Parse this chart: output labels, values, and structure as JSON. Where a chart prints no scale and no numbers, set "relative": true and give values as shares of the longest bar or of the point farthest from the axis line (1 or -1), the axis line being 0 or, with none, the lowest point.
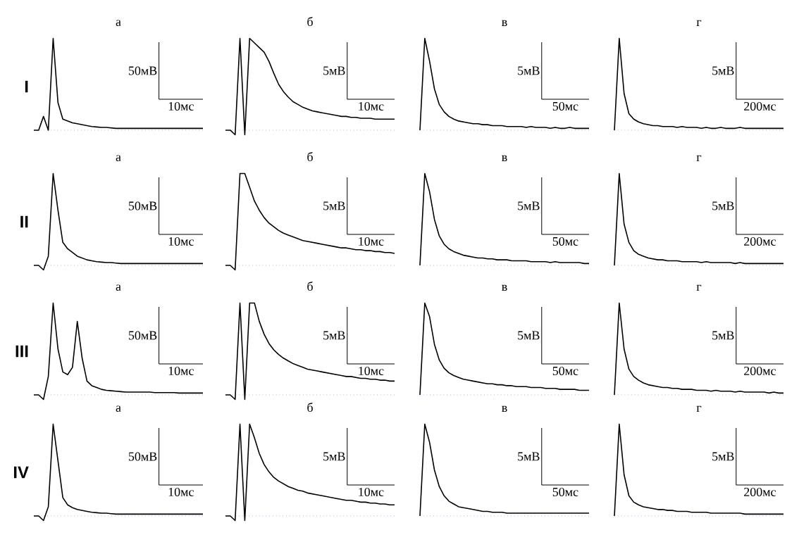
{
  "chart_data": [
    {
      "type": "line",
      "title": "а",
      "ylabel": "I",
      "relative": true,
      "color": "#000000",
      "annotations": [
        "50мВ",
        "10мс"
      ],
      "ref_lines": [
        {
          "axis": "y",
          "value": 0,
          "color": "#8080ff",
          "line_style": "dotted"
        }
      ],
      "categories": [
        null,
        null,
        null,
        null,
        null,
        null,
        null,
        null,
        null,
        null,
        null,
        null,
        null,
        null,
        null,
        null,
        null,
        null,
        null,
        null,
        null,
        null,
        null,
        null,
        null,
        null,
        null,
        null,
        null,
        null,
        null,
        null,
        null,
        null,
        null,
        null
      ],
      "values": [
        0,
        0,
        0.15,
        0,
        1,
        0.3,
        0.12,
        0.1,
        0.08,
        0.07,
        0.06,
        0.05,
        0.04,
        0.035,
        0.03,
        0.03,
        0.025,
        0.02,
        0.02,
        0.02,
        0.02,
        0.02,
        0.02,
        0.02,
        0.02,
        0.02,
        0.02,
        0.02,
        0.02,
        0.02,
        0.02,
        0.02,
        0.02,
        0.02,
        0.02,
        0.02
      ]
    },
    {
      "type": "line",
      "title": "б",
      "relative": true,
      "color": "#000000",
      "annotations": [
        "5мВ",
        "10мс"
      ],
      "ref_lines": [
        {
          "axis": "y",
          "value": 0,
          "color": "#8080ff",
          "line_style": "dotted"
        }
      ],
      "categories": [
        null,
        null,
        null,
        null,
        null,
        null,
        null,
        null,
        null,
        null,
        null,
        null,
        null,
        null,
        null,
        null,
        null,
        null,
        null,
        null,
        null,
        null,
        null,
        null,
        null,
        null,
        null,
        null,
        null,
        null,
        null,
        null,
        null,
        null,
        null,
        null
      ],
      "values": [
        0,
        0,
        -0.05,
        1,
        -0.05,
        1,
        0.95,
        0.9,
        0.85,
        0.75,
        0.62,
        0.5,
        0.42,
        0.36,
        0.31,
        0.28,
        0.25,
        0.23,
        0.21,
        0.2,
        0.19,
        0.18,
        0.17,
        0.16,
        0.15,
        0.15,
        0.14,
        0.14,
        0.13,
        0.13,
        0.13,
        0.12,
        0.12,
        0.12,
        0.12,
        0.12
      ]
    },
    {
      "type": "line",
      "title": "в",
      "relative": true,
      "color": "#000000",
      "annotations": [
        "5мВ",
        "50мс"
      ],
      "ref_lines": [
        {
          "axis": "y",
          "value": 0,
          "color": "#8080ff",
          "line_style": "dotted"
        }
      ],
      "categories": [
        null,
        null,
        null,
        null,
        null,
        null,
        null,
        null,
        null,
        null,
        null,
        null,
        null,
        null,
        null,
        null,
        null,
        null,
        null,
        null,
        null,
        null,
        null,
        null,
        null,
        null,
        null,
        null,
        null,
        null,
        null,
        null,
        null,
        null,
        null,
        null
      ],
      "values": [
        0,
        1,
        0.75,
        0.45,
        0.28,
        0.2,
        0.15,
        0.12,
        0.1,
        0.09,
        0.08,
        0.07,
        0.07,
        0.06,
        0.06,
        0.05,
        0.05,
        0.05,
        0.04,
        0.04,
        0.04,
        0.04,
        0.03,
        0.04,
        0.03,
        0.03,
        0.03,
        0.02,
        0.03,
        0.02,
        0.02,
        0.03,
        0.02,
        0.02,
        0.02,
        0.02
      ]
    },
    {
      "type": "line",
      "title": "г",
      "relative": true,
      "color": "#000000",
      "annotations": [
        "5мВ",
        "200мс"
      ],
      "ref_lines": [
        {
          "axis": "y",
          "value": 0,
          "color": "#8080ff",
          "line_style": "dotted"
        }
      ],
      "categories": [
        null,
        null,
        null,
        null,
        null,
        null,
        null,
        null,
        null,
        null,
        null,
        null,
        null,
        null,
        null,
        null,
        null,
        null,
        null,
        null,
        null,
        null,
        null,
        null,
        null,
        null,
        null,
        null,
        null,
        null,
        null,
        null,
        null,
        null,
        null,
        null
      ],
      "values": [
        0,
        1,
        0.4,
        0.18,
        0.12,
        0.09,
        0.07,
        0.06,
        0.05,
        0.05,
        0.04,
        0.04,
        0.04,
        0.03,
        0.04,
        0.03,
        0.03,
        0.03,
        0.02,
        0.03,
        0.02,
        0.02,
        0.03,
        0.02,
        0.02,
        0.02,
        0.03,
        0.02,
        0.02,
        0.02,
        0.02,
        0.02,
        0.02,
        0.02,
        0.02,
        0.02
      ]
    },
    {
      "type": "line",
      "title": "а",
      "ylabel": "II",
      "relative": true,
      "color": "#000000",
      "annotations": [
        "50мВ",
        "10мс"
      ],
      "ref_lines": [
        {
          "axis": "y",
          "value": 0,
          "color": "#8080ff",
          "line_style": "dotted"
        }
      ],
      "categories": [
        null,
        null,
        null,
        null,
        null,
        null,
        null,
        null,
        null,
        null,
        null,
        null,
        null,
        null,
        null,
        null,
        null,
        null,
        null,
        null,
        null,
        null,
        null,
        null,
        null,
        null,
        null,
        null,
        null,
        null,
        null,
        null,
        null,
        null,
        null,
        null
      ],
      "values": [
        0,
        0,
        -0.05,
        0.1,
        1,
        0.6,
        0.25,
        0.18,
        0.14,
        0.1,
        0.08,
        0.06,
        0.05,
        0.04,
        0.035,
        0.03,
        0.03,
        0.025,
        0.02,
        0.02,
        0.02,
        0.02,
        0.02,
        0.02,
        0.02,
        0.02,
        0.02,
        0.02,
        0.02,
        0.02,
        0.02,
        0.02,
        0.02,
        0.02,
        0.02,
        0.02
      ]
    },
    {
      "type": "line",
      "title": "б",
      "relative": true,
      "color": "#000000",
      "annotations": [
        "5мВ",
        "10мс"
      ],
      "ref_lines": [
        {
          "axis": "y",
          "value": 0,
          "color": "#8080ff",
          "line_style": "dotted"
        }
      ],
      "categories": [
        null,
        null,
        null,
        null,
        null,
        null,
        null,
        null,
        null,
        null,
        null,
        null,
        null,
        null,
        null,
        null,
        null,
        null,
        null,
        null,
        null,
        null,
        null,
        null,
        null,
        null,
        null,
        null,
        null,
        null,
        null,
        null,
        null,
        null,
        null,
        null
      ],
      "values": [
        0,
        0,
        -0.05,
        1,
        1,
        0.85,
        0.7,
        0.6,
        0.52,
        0.46,
        0.42,
        0.38,
        0.35,
        0.33,
        0.31,
        0.29,
        0.27,
        0.26,
        0.25,
        0.24,
        0.23,
        0.22,
        0.21,
        0.2,
        0.19,
        0.19,
        0.18,
        0.17,
        0.17,
        0.16,
        0.16,
        0.15,
        0.15,
        0.14,
        0.14,
        0.13
      ]
    },
    {
      "type": "line",
      "title": "в",
      "relative": true,
      "color": "#000000",
      "annotations": [
        "5мВ",
        "50мс"
      ],
      "ref_lines": [
        {
          "axis": "y",
          "value": 0,
          "color": "#8080ff",
          "line_style": "dotted"
        }
      ],
      "categories": [
        null,
        null,
        null,
        null,
        null,
        null,
        null,
        null,
        null,
        null,
        null,
        null,
        null,
        null,
        null,
        null,
        null,
        null,
        null,
        null,
        null,
        null,
        null,
        null,
        null,
        null,
        null,
        null,
        null,
        null,
        null,
        null,
        null,
        null,
        null,
        null
      ],
      "values": [
        0,
        1,
        0.8,
        0.5,
        0.32,
        0.23,
        0.18,
        0.15,
        0.13,
        0.11,
        0.1,
        0.09,
        0.08,
        0.08,
        0.07,
        0.07,
        0.06,
        0.06,
        0.06,
        0.05,
        0.05,
        0.05,
        0.05,
        0.04,
        0.04,
        0.04,
        0.04,
        0.03,
        0.04,
        0.03,
        0.03,
        0.03,
        0.03,
        0.03,
        0.02,
        0.02
      ]
    },
    {
      "type": "line",
      "title": "г",
      "relative": true,
      "color": "#000000",
      "annotations": [
        "5мВ",
        "200мс"
      ],
      "ref_lines": [
        {
          "axis": "y",
          "value": 0,
          "color": "#8080ff",
          "line_style": "dotted"
        }
      ],
      "categories": [
        null,
        null,
        null,
        null,
        null,
        null,
        null,
        null,
        null,
        null,
        null,
        null,
        null,
        null,
        null,
        null,
        null,
        null,
        null,
        null,
        null,
        null,
        null,
        null,
        null,
        null,
        null,
        null,
        null,
        null,
        null,
        null,
        null,
        null,
        null,
        null
      ],
      "values": [
        0,
        1,
        0.45,
        0.25,
        0.16,
        0.12,
        0.1,
        0.08,
        0.07,
        0.06,
        0.06,
        0.05,
        0.05,
        0.05,
        0.04,
        0.04,
        0.04,
        0.04,
        0.03,
        0.04,
        0.03,
        0.03,
        0.03,
        0.03,
        0.03,
        0.02,
        0.03,
        0.02,
        0.02,
        0.02,
        0.02,
        0.02,
        0.02,
        0.02,
        0.02,
        0.02
      ]
    },
    {
      "type": "line",
      "title": "а",
      "ylabel": "III",
      "relative": true,
      "color": "#000000",
      "annotations": [
        "50мВ",
        "10мс"
      ],
      "ref_lines": [
        {
          "axis": "y",
          "value": 0,
          "color": "#8080ff",
          "line_style": "dotted"
        }
      ],
      "categories": [
        null,
        null,
        null,
        null,
        null,
        null,
        null,
        null,
        null,
        null,
        null,
        null,
        null,
        null,
        null,
        null,
        null,
        null,
        null,
        null,
        null,
        null,
        null,
        null,
        null,
        null,
        null,
        null,
        null,
        null,
        null,
        null,
        null,
        null,
        null,
        null
      ],
      "values": [
        0,
        0,
        -0.05,
        0.2,
        1,
        0.5,
        0.25,
        0.22,
        0.3,
        0.8,
        0.4,
        0.15,
        0.1,
        0.08,
        0.06,
        0.05,
        0.045,
        0.04,
        0.035,
        0.03,
        0.03,
        0.03,
        0.03,
        0.03,
        0.03,
        0.025,
        0.025,
        0.025,
        0.025,
        0.025,
        0.02,
        0.02,
        0.02,
        0.02,
        0.02,
        0.02
      ]
    },
    {
      "type": "line",
      "title": "б",
      "relative": true,
      "color": "#000000",
      "annotations": [
        "5мВ",
        "10мс"
      ],
      "ref_lines": [
        {
          "axis": "y",
          "value": 0,
          "color": "#8080ff",
          "line_style": "dotted"
        }
      ],
      "categories": [
        null,
        null,
        null,
        null,
        null,
        null,
        null,
        null,
        null,
        null,
        null,
        null,
        null,
        null,
        null,
        null,
        null,
        null,
        null,
        null,
        null,
        null,
        null,
        null,
        null,
        null,
        null,
        null,
        null,
        null,
        null,
        null,
        null,
        null,
        null,
        null
      ],
      "values": [
        0,
        0,
        -0.05,
        1,
        -0.05,
        1,
        1,
        0.8,
        0.66,
        0.56,
        0.49,
        0.44,
        0.4,
        0.37,
        0.34,
        0.32,
        0.3,
        0.28,
        0.27,
        0.26,
        0.25,
        0.24,
        0.23,
        0.22,
        0.21,
        0.2,
        0.2,
        0.19,
        0.18,
        0.18,
        0.17,
        0.17,
        0.16,
        0.16,
        0.15,
        0.15
      ]
    },
    {
      "type": "line",
      "title": "в",
      "relative": true,
      "color": "#000000",
      "annotations": [
        "5мВ",
        "50мс"
      ],
      "ref_lines": [
        {
          "axis": "y",
          "value": 0,
          "color": "#8080ff",
          "line_style": "dotted"
        }
      ],
      "categories": [
        null,
        null,
        null,
        null,
        null,
        null,
        null,
        null,
        null,
        null,
        null,
        null,
        null,
        null,
        null,
        null,
        null,
        null,
        null,
        null,
        null,
        null,
        null,
        null,
        null,
        null,
        null,
        null,
        null,
        null,
        null,
        null,
        null,
        null,
        null,
        null
      ],
      "values": [
        0,
        1,
        0.85,
        0.55,
        0.38,
        0.29,
        0.24,
        0.21,
        0.19,
        0.17,
        0.16,
        0.15,
        0.14,
        0.13,
        0.12,
        0.12,
        0.11,
        0.11,
        0.1,
        0.1,
        0.09,
        0.09,
        0.09,
        0.08,
        0.08,
        0.08,
        0.07,
        0.07,
        0.07,
        0.06,
        0.06,
        0.06,
        0.06,
        0.05,
        0.05,
        0.05
      ]
    },
    {
      "type": "line",
      "title": "г",
      "relative": true,
      "color": "#000000",
      "annotations": [
        "5мВ",
        "200мс"
      ],
      "ref_lines": [
        {
          "axis": "y",
          "value": 0,
          "color": "#8080ff",
          "line_style": "dotted"
        }
      ],
      "categories": [
        null,
        null,
        null,
        null,
        null,
        null,
        null,
        null,
        null,
        null,
        null,
        null,
        null,
        null,
        null,
        null,
        null,
        null,
        null,
        null,
        null,
        null,
        null,
        null,
        null,
        null,
        null,
        null,
        null,
        null,
        null,
        null,
        null,
        null,
        null,
        null
      ],
      "values": [
        0,
        1,
        0.5,
        0.28,
        0.2,
        0.16,
        0.13,
        0.11,
        0.1,
        0.09,
        0.08,
        0.08,
        0.07,
        0.07,
        0.06,
        0.06,
        0.06,
        0.05,
        0.05,
        0.05,
        0.04,
        0.05,
        0.04,
        0.04,
        0.04,
        0.03,
        0.04,
        0.03,
        0.03,
        0.03,
        0.03,
        0.03,
        0.02,
        0.03,
        0.02,
        0.02
      ]
    },
    {
      "type": "line",
      "title": "а",
      "ylabel": "IV",
      "relative": true,
      "color": "#000000",
      "annotations": [
        "50мВ",
        "10мс"
      ],
      "ref_lines": [
        {
          "axis": "y",
          "value": 0,
          "color": "#8080ff",
          "line_style": "dotted"
        }
      ],
      "categories": [
        null,
        null,
        null,
        null,
        null,
        null,
        null,
        null,
        null,
        null,
        null,
        null,
        null,
        null,
        null,
        null,
        null,
        null,
        null,
        null,
        null,
        null,
        null,
        null,
        null,
        null,
        null,
        null,
        null,
        null,
        null,
        null,
        null,
        null,
        null,
        null
      ],
      "values": [
        0,
        0,
        -0.05,
        0.1,
        1,
        0.6,
        0.2,
        0.12,
        0.09,
        0.07,
        0.06,
        0.05,
        0.04,
        0.035,
        0.03,
        0.03,
        0.025,
        0.02,
        0.02,
        0.02,
        0.02,
        0.02,
        0.02,
        0.02,
        0.02,
        0.02,
        0.02,
        0.02,
        0.02,
        0.02,
        0.02,
        0.02,
        0.02,
        0.02,
        0.02,
        0.02
      ]
    },
    {
      "type": "line",
      "title": "б",
      "relative": true,
      "color": "#000000",
      "annotations": [
        "5мВ",
        "10мс"
      ],
      "ref_lines": [
        {
          "axis": "y",
          "value": 0,
          "color": "#8080ff",
          "line_style": "dotted"
        }
      ],
      "categories": [
        null,
        null,
        null,
        null,
        null,
        null,
        null,
        null,
        null,
        null,
        null,
        null,
        null,
        null,
        null,
        null,
        null,
        null,
        null,
        null,
        null,
        null,
        null,
        null,
        null,
        null,
        null,
        null,
        null,
        null,
        null,
        null,
        null,
        null,
        null,
        null
      ],
      "values": [
        0,
        0,
        -0.05,
        1,
        -0.05,
        1,
        0.85,
        0.68,
        0.56,
        0.48,
        0.42,
        0.38,
        0.35,
        0.32,
        0.3,
        0.28,
        0.27,
        0.25,
        0.24,
        0.23,
        0.22,
        0.21,
        0.2,
        0.19,
        0.18,
        0.17,
        0.17,
        0.16,
        0.15,
        0.15,
        0.14,
        0.14,
        0.13,
        0.13,
        0.12,
        0.12
      ]
    },
    {
      "type": "line",
      "title": "в",
      "relative": true,
      "color": "#000000",
      "annotations": [
        "5мВ",
        "50мс"
      ],
      "ref_lines": [
        {
          "axis": "y",
          "value": 0,
          "color": "#8080ff",
          "line_style": "dotted"
        }
      ],
      "categories": [
        null,
        null,
        null,
        null,
        null,
        null,
        null,
        null,
        null,
        null,
        null,
        null,
        null,
        null,
        null,
        null,
        null,
        null,
        null,
        null,
        null,
        null,
        null,
        null,
        null,
        null,
        null,
        null,
        null,
        null,
        null,
        null,
        null,
        null,
        null,
        null
      ],
      "values": [
        0,
        1,
        0.8,
        0.5,
        0.32,
        0.22,
        0.16,
        0.13,
        0.1,
        0.09,
        0.08,
        0.07,
        0.06,
        0.05,
        0.05,
        0.04,
        0.04,
        0.04,
        0.03,
        0.03,
        0.03,
        0.03,
        0.03,
        0.03,
        0.03,
        0.03,
        0.03,
        0.03,
        0.03,
        0.03,
        0.03,
        0.03,
        0.03,
        0.03,
        0.03,
        0.03
      ]
    },
    {
      "type": "line",
      "title": "г",
      "relative": true,
      "color": "#000000",
      "annotations": [
        "5мВ",
        "200мс"
      ],
      "ref_lines": [
        {
          "axis": "y",
          "value": 0,
          "color": "#8080ff",
          "line_style": "dotted"
        }
      ],
      "categories": [
        null,
        null,
        null,
        null,
        null,
        null,
        null,
        null,
        null,
        null,
        null,
        null,
        null,
        null,
        null,
        null,
        null,
        null,
        null,
        null,
        null,
        null,
        null,
        null,
        null,
        null,
        null,
        null,
        null,
        null,
        null,
        null,
        null,
        null,
        null,
        null
      ],
      "values": [
        0,
        1,
        0.45,
        0.22,
        0.15,
        0.12,
        0.1,
        0.09,
        0.08,
        0.07,
        0.07,
        0.06,
        0.06,
        0.05,
        0.05,
        0.05,
        0.04,
        0.04,
        0.04,
        0.04,
        0.03,
        0.03,
        0.03,
        0.03,
        0.03,
        0.03,
        0.03,
        0.02,
        0.02,
        0.02,
        0.02,
        0.02,
        0.02,
        0.02,
        0.02,
        0.02
      ]
    }
  ]
}
